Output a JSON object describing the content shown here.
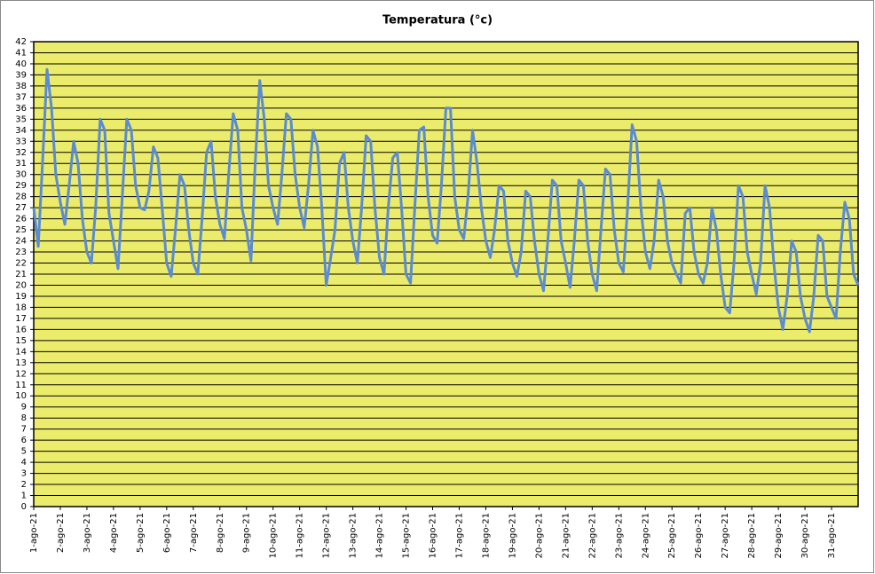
{
  "chart_data": {
    "type": "line",
    "title": "Temperatura (°c)",
    "x": [
      1,
      1.17,
      1.33,
      1.5,
      1.67,
      1.83,
      2,
      2.17,
      2.33,
      2.5,
      2.67,
      2.83,
      3,
      3.17,
      3.33,
      3.5,
      3.67,
      3.83,
      4,
      4.17,
      4.33,
      4.5,
      4.67,
      4.83,
      5,
      5.17,
      5.33,
      5.5,
      5.67,
      5.83,
      6,
      6.17,
      6.33,
      6.5,
      6.67,
      6.83,
      7,
      7.17,
      7.33,
      7.5,
      7.67,
      7.83,
      8,
      8.17,
      8.33,
      8.5,
      8.67,
      8.83,
      9,
      9.17,
      9.33,
      9.5,
      9.67,
      9.83,
      10,
      10.17,
      10.33,
      10.5,
      10.67,
      10.83,
      11,
      11.17,
      11.33,
      11.5,
      11.67,
      11.83,
      12,
      12.17,
      12.33,
      12.5,
      12.67,
      12.83,
      13,
      13.17,
      13.33,
      13.5,
      13.67,
      13.83,
      14,
      14.17,
      14.33,
      14.5,
      14.67,
      14.83,
      15,
      15.17,
      15.33,
      15.5,
      15.67,
      15.83,
      16,
      16.17,
      16.33,
      16.5,
      16.67,
      16.83,
      17,
      17.17,
      17.33,
      17.5,
      17.67,
      17.83,
      18,
      18.17,
      18.33,
      18.5,
      18.67,
      18.83,
      19,
      19.17,
      19.33,
      19.5,
      19.67,
      19.83,
      20,
      20.17,
      20.33,
      20.5,
      20.67,
      20.83,
      21,
      21.17,
      21.33,
      21.5,
      21.67,
      21.83,
      22,
      22.17,
      22.33,
      22.5,
      22.67,
      22.83,
      23,
      23.17,
      23.33,
      23.5,
      23.67,
      23.83,
      24,
      24.17,
      24.33,
      24.5,
      24.67,
      24.83,
      25,
      25.17,
      25.33,
      25.5,
      25.67,
      25.83,
      26,
      26.17,
      26.33,
      26.5,
      26.67,
      26.83,
      27,
      27.17,
      27.33,
      27.5,
      27.67,
      27.83,
      28,
      28.17,
      28.33,
      28.5,
      28.67,
      28.83,
      29,
      29.17,
      29.33,
      29.5,
      29.67,
      29.83,
      30,
      30.17,
      30.33,
      30.5,
      30.67,
      30.83,
      31,
      31.17,
      31.33,
      31.5,
      31.67,
      31.83,
      32
    ],
    "series": [
      {
        "name": "Temperatura",
        "color": "#5b8bd0",
        "values": [
          27,
          23.5,
          31,
          39.5,
          36,
          30,
          27.5,
          25.5,
          29,
          33,
          31,
          26,
          23,
          22,
          27,
          35,
          34,
          26.5,
          24,
          21.5,
          28,
          35,
          34,
          29,
          27,
          26.8,
          28.5,
          32.5,
          31.5,
          27,
          22,
          20.8,
          25,
          30,
          29,
          25,
          22,
          21,
          26,
          32,
          33,
          28,
          25.5,
          24.2,
          30,
          35.5,
          34,
          27,
          25,
          22.2,
          31,
          38.5,
          35,
          29,
          27,
          25.5,
          30,
          35.5,
          35,
          30,
          27,
          25.2,
          29,
          34,
          32.5,
          27,
          20,
          22.5,
          25,
          31,
          32,
          27,
          24,
          22,
          27,
          33.5,
          33,
          27,
          22.5,
          21,
          27,
          31.5,
          32,
          27,
          21,
          20.2,
          27,
          34,
          34.3,
          28,
          24.5,
          23.8,
          29,
          36,
          36,
          28,
          25,
          24.2,
          28,
          34,
          31,
          27,
          24,
          22.5,
          25,
          29,
          28.5,
          24,
          22,
          20.8,
          23,
          28.5,
          28,
          24,
          21,
          19.5,
          24,
          29.5,
          29,
          24,
          22,
          19.8,
          24,
          29.5,
          29,
          24,
          21,
          19.5,
          25,
          30.5,
          30,
          25,
          22,
          21.2,
          27,
          34.5,
          33,
          27,
          23,
          21.5,
          24,
          29.5,
          28,
          24,
          22,
          21,
          20.2,
          26.5,
          27,
          23,
          21,
          20.2,
          22,
          27,
          25,
          21,
          18,
          17.5,
          22,
          29,
          28,
          23,
          21,
          19.2,
          22,
          29,
          27,
          22,
          18,
          16,
          19,
          24,
          23,
          19,
          17,
          15.8,
          19,
          24.5,
          24,
          19,
          18,
          17,
          23,
          27.5,
          26,
          21,
          20
        ]
      }
    ],
    "xlim": [
      1,
      32
    ],
    "xticks": [
      {
        "value": 1,
        "label": "1-ago-21"
      },
      {
        "value": 2,
        "label": "2-ago-21"
      },
      {
        "value": 3,
        "label": "3-ago-21"
      },
      {
        "value": 4,
        "label": "4-ago-21"
      },
      {
        "value": 5,
        "label": "5-ago-21"
      },
      {
        "value": 6,
        "label": "6-ago-21"
      },
      {
        "value": 7,
        "label": "7-ago-21"
      },
      {
        "value": 8,
        "label": "8-ago-21"
      },
      {
        "value": 9,
        "label": "9-ago-21"
      },
      {
        "value": 10,
        "label": "10-ago-21"
      },
      {
        "value": 11,
        "label": "11-ago-21"
      },
      {
        "value": 12,
        "label": "12-ago-21"
      },
      {
        "value": 13,
        "label": "13-ago-21"
      },
      {
        "value": 14,
        "label": "14-ago-21"
      },
      {
        "value": 15,
        "label": "15-ago-21"
      },
      {
        "value": 16,
        "label": "16-ago-21"
      },
      {
        "value": 17,
        "label": "17-ago-21"
      },
      {
        "value": 18,
        "label": "18-ago-21"
      },
      {
        "value": 19,
        "label": "19-ago-21"
      },
      {
        "value": 20,
        "label": "20-ago-21"
      },
      {
        "value": 21,
        "label": "21-ago-21"
      },
      {
        "value": 22,
        "label": "22-ago-21"
      },
      {
        "value": 23,
        "label": "23-ago-21"
      },
      {
        "value": 24,
        "label": "24-ago-21"
      },
      {
        "value": 25,
        "label": "25-ago-21"
      },
      {
        "value": 26,
        "label": "26-ago-21"
      },
      {
        "value": 27,
        "label": "27-ago-21"
      },
      {
        "value": 28,
        "label": "28-ago-21"
      },
      {
        "value": 29,
        "label": "29-ago-21"
      },
      {
        "value": 30,
        "label": "30-ago-21"
      },
      {
        "value": 31,
        "label": "31-ago-21"
      }
    ],
    "ylim": [
      0,
      42
    ],
    "yticks": [
      0,
      1,
      2,
      3,
      4,
      5,
      6,
      7,
      8,
      9,
      10,
      11,
      12,
      13,
      14,
      15,
      16,
      17,
      18,
      19,
      20,
      21,
      22,
      23,
      24,
      25,
      26,
      27,
      28,
      29,
      30,
      31,
      32,
      33,
      34,
      35,
      36,
      37,
      38,
      39,
      40,
      41,
      42
    ],
    "grid": true,
    "plot_background": "#ecec6c"
  }
}
